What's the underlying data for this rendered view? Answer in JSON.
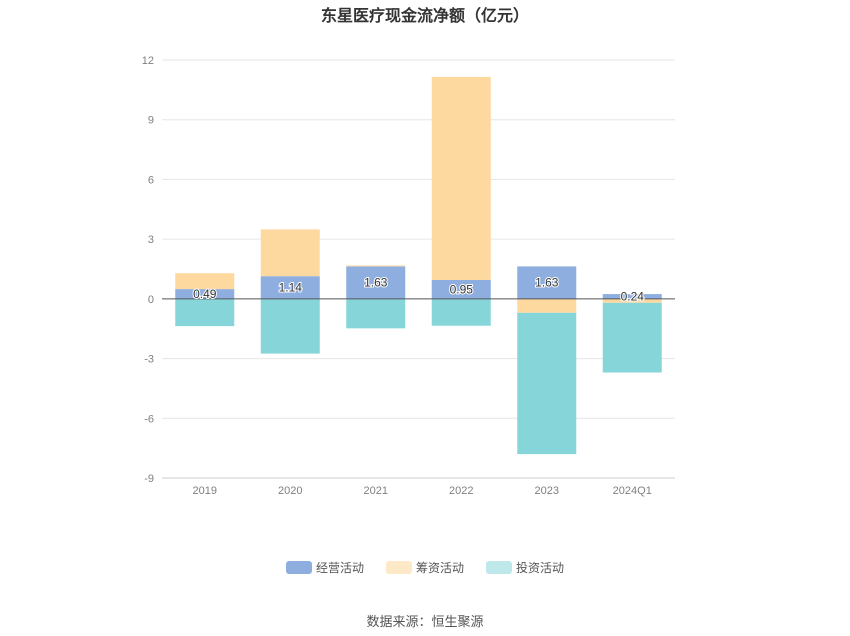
{
  "chart_data": {
    "type": "bar",
    "stacked": true,
    "title": "东星医疗现金流净额（亿元）",
    "categories": [
      "2019",
      "2020",
      "2021",
      "2022",
      "2023",
      "2024Q1"
    ],
    "ylim": [
      -9,
      12
    ],
    "yticks": [
      "12",
      "9",
      "6",
      "3",
      "0",
      "-3",
      "-6",
      "-9"
    ],
    "ytick_values": [
      12,
      9,
      6,
      3,
      0,
      -3,
      -6,
      -9
    ],
    "grid": true,
    "legend_position": "bottom",
    "series": [
      {
        "name": "经营活动",
        "color": "#8eaee0",
        "values": [
          0.49,
          1.14,
          1.63,
          0.95,
          1.63,
          0.24
        ],
        "labels": [
          "0.49",
          "1.14",
          "1.63",
          "0.95",
          "1.63",
          "0.24"
        ]
      },
      {
        "name": "筹资活动",
        "color": "#fdd9a0",
        "values": [
          0.8,
          2.35,
          0.05,
          10.2,
          -0.7,
          -0.2
        ]
      },
      {
        "name": "投资活动",
        "color": "#86d6d9",
        "values": [
          -1.37,
          -2.75,
          -1.48,
          -1.35,
          -7.1,
          -3.5
        ]
      }
    ]
  },
  "source": "数据来源：恒生聚源"
}
